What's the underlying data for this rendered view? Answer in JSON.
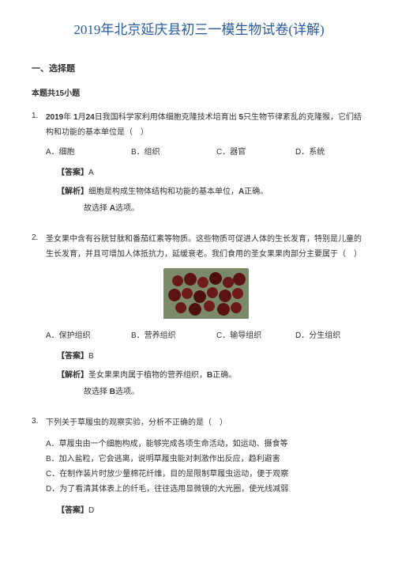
{
  "title": "2019年北京延庆县初三一模生物试卷(详解)",
  "section_head": "一、选择题",
  "section_sub": "本题共15小题",
  "q1": {
    "num": "1.",
    "text_a": "2019",
    "text_b": "年 ",
    "text_c": "1",
    "text_d": "月",
    "text_e": "24",
    "text_f": "日我国科学家利用体细胞克隆技术培育出 ",
    "text_g": "5",
    "text_h": "只生物节律紊乱的克隆猴，它们结构和功能的基本单位是（　）",
    "opts": {
      "a": "A．细胞",
      "b": "B．组织",
      "c": "C．器官",
      "d": "D．系统"
    },
    "ans_lbl": "【答案】",
    "ans_val": "A",
    "exp_lbl": "【解析】",
    "exp_text_a": "细胞是构成生物体结构和功能的基本单位，",
    "exp_text_b": "A",
    "exp_text_c": "正确。",
    "exp_sub_a": "故选择 ",
    "exp_sub_b": "A",
    "exp_sub_c": "选项。"
  },
  "q2": {
    "num": "2.",
    "text": "圣女果中含有谷胱甘肽和番茄红素等物质。这些物质可促进人体的生长发育，特别是儿童的生长发育，并且可增加人体抵抗力，延缓衰老。我们食用的圣女果果肉部分主要属于（　）",
    "opts": {
      "a": "A．保护组织",
      "b": "B．营养组织",
      "c": "C．输导组织",
      "d": "D．分生组织"
    },
    "ans_lbl": "【答案】",
    "ans_val": "B",
    "exp_lbl": "【解析】",
    "exp_text_a": "圣女果果肉属于植物的营养组织，",
    "exp_text_b": "B",
    "exp_text_c": "正确。",
    "exp_sub_a": "故选择 ",
    "exp_sub_b": "B",
    "exp_sub_c": "选项。",
    "img_colors": {
      "bg": "#7b8a6a",
      "tomato_shades": [
        "#6b1818",
        "#5a1212",
        "#701a1a",
        "#4e0f0f"
      ]
    }
  },
  "q3": {
    "num": "3.",
    "text": "下列关于草履虫的观察实验，分析不正确的是（　）",
    "opts": {
      "a": "A．草履虫由一个细胞构成，能够完成各项生命活动，如运动、摄食等",
      "b": "B．加入盐粒，它会逃离，说明草履虫能对刺激作出反应，趋利避害",
      "c": "C．在制作装片时放少量棉花纤维，目的是限制草履虫运动，便于观察",
      "d": "D．为了看清其体表上的纤毛，往往选用显微镜的大光圈，使光线减弱"
    },
    "ans_lbl": "【答案】",
    "ans_val": "D"
  },
  "colors": {
    "title": "#2a5b9c",
    "text": "#333333",
    "bg": "#ffffff"
  },
  "fonts": {
    "title_size": 17,
    "body_size": 10
  }
}
